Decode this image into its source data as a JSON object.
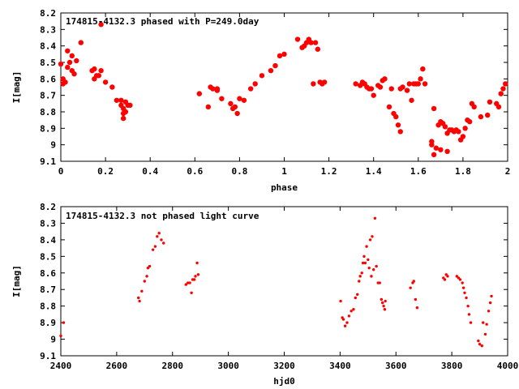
{
  "chart_data": [
    {
      "type": "scatter",
      "title": "174815-4132.3 phased with P=249.0day",
      "xlabel": "phase",
      "ylabel": "I[mag]",
      "xlim": [
        0,
        2
      ],
      "ylim": [
        9.1,
        8.2
      ],
      "y_inverted": true,
      "grid": false,
      "marker_color": "#ff0000",
      "marker": "filled-circle-large",
      "xticks": [
        0,
        0.2,
        0.4,
        0.6,
        0.8,
        1,
        1.2,
        1.4,
        1.6,
        1.8,
        2
      ],
      "yticks": [
        8.2,
        8.3,
        8.4,
        8.5,
        8.6,
        8.7,
        8.8,
        8.9,
        9,
        9.1
      ],
      "points": [
        [
          0.0,
          8.51
        ],
        [
          0.01,
          8.6
        ],
        [
          0.01,
          8.63
        ],
        [
          0.02,
          8.62
        ],
        [
          0.03,
          8.53
        ],
        [
          0.03,
          8.43
        ],
        [
          0.04,
          8.5
        ],
        [
          0.05,
          8.55
        ],
        [
          0.05,
          8.46
        ],
        [
          0.06,
          8.57
        ],
        [
          0.07,
          8.49
        ],
        [
          0.09,
          8.38
        ],
        [
          0.14,
          8.55
        ],
        [
          0.15,
          8.6
        ],
        [
          0.15,
          8.54
        ],
        [
          0.16,
          8.58
        ],
        [
          0.17,
          8.58
        ],
        [
          0.18,
          8.55
        ],
        [
          0.18,
          8.27
        ],
        [
          0.2,
          8.62
        ],
        [
          0.23,
          8.65
        ],
        [
          0.25,
          8.73
        ],
        [
          0.27,
          8.73
        ],
        [
          0.27,
          8.76
        ],
        [
          0.28,
          8.78
        ],
        [
          0.28,
          8.81
        ],
        [
          0.28,
          8.84
        ],
        [
          0.29,
          8.8
        ],
        [
          0.29,
          8.74
        ],
        [
          0.3,
          8.76
        ],
        [
          0.31,
          8.76
        ],
        [
          0.62,
          8.69
        ],
        [
          0.66,
          8.77
        ],
        [
          0.67,
          8.65
        ],
        [
          0.68,
          8.66
        ],
        [
          0.7,
          8.66
        ],
        [
          0.7,
          8.67
        ],
        [
          0.72,
          8.72
        ],
        [
          0.76,
          8.75
        ],
        [
          0.77,
          8.78
        ],
        [
          0.78,
          8.77
        ],
        [
          0.79,
          8.81
        ],
        [
          0.8,
          8.72
        ],
        [
          0.82,
          8.73
        ],
        [
          0.85,
          8.66
        ],
        [
          0.87,
          8.63
        ],
        [
          0.9,
          8.58
        ],
        [
          0.94,
          8.55
        ],
        [
          0.96,
          8.52
        ],
        [
          0.98,
          8.46
        ],
        [
          1.0,
          8.45
        ],
        [
          1.06,
          8.36
        ],
        [
          1.08,
          8.41
        ],
        [
          1.09,
          8.4
        ],
        [
          1.1,
          8.38
        ],
        [
          1.11,
          8.36
        ],
        [
          1.12,
          8.38
        ],
        [
          1.13,
          8.63
        ],
        [
          1.14,
          8.38
        ],
        [
          1.15,
          8.42
        ],
        [
          1.16,
          8.62
        ],
        [
          1.17,
          8.63
        ],
        [
          1.18,
          8.62
        ],
        [
          1.32,
          8.63
        ],
        [
          1.34,
          8.64
        ],
        [
          1.35,
          8.62
        ],
        [
          1.36,
          8.63
        ],
        [
          1.37,
          8.65
        ],
        [
          1.38,
          8.66
        ],
        [
          1.39,
          8.66
        ],
        [
          1.4,
          8.7
        ],
        [
          1.42,
          8.64
        ],
        [
          1.43,
          8.65
        ],
        [
          1.44,
          8.61
        ],
        [
          1.45,
          8.6
        ],
        [
          1.47,
          8.77
        ],
        [
          1.48,
          8.66
        ],
        [
          1.49,
          8.81
        ],
        [
          1.5,
          8.83
        ],
        [
          1.51,
          8.88
        ],
        [
          1.52,
          8.92
        ],
        [
          1.52,
          8.66
        ],
        [
          1.53,
          8.65
        ],
        [
          1.55,
          8.67
        ],
        [
          1.56,
          8.63
        ],
        [
          1.57,
          8.73
        ],
        [
          1.58,
          8.63
        ],
        [
          1.59,
          8.63
        ],
        [
          1.6,
          8.63
        ],
        [
          1.61,
          8.6
        ],
        [
          1.62,
          8.54
        ],
        [
          1.63,
          8.63
        ],
        [
          1.66,
          8.98
        ],
        [
          1.66,
          9.0
        ],
        [
          1.67,
          8.78
        ],
        [
          1.67,
          9.06
        ],
        [
          1.68,
          9.02
        ],
        [
          1.69,
          8.88
        ],
        [
          1.7,
          8.86
        ],
        [
          1.7,
          9.03
        ],
        [
          1.71,
          8.87
        ],
        [
          1.72,
          8.89
        ],
        [
          1.73,
          8.93
        ],
        [
          1.73,
          9.04
        ],
        [
          1.74,
          8.91
        ],
        [
          1.75,
          8.91
        ],
        [
          1.76,
          8.92
        ],
        [
          1.77,
          8.91
        ],
        [
          1.78,
          8.92
        ],
        [
          1.79,
          8.97
        ],
        [
          1.8,
          8.95
        ],
        [
          1.81,
          8.9
        ],
        [
          1.82,
          8.85
        ],
        [
          1.83,
          8.86
        ],
        [
          1.84,
          8.75
        ],
        [
          1.85,
          8.77
        ],
        [
          1.88,
          8.83
        ],
        [
          1.91,
          8.82
        ],
        [
          1.92,
          8.74
        ],
        [
          1.95,
          8.75
        ],
        [
          1.96,
          8.77
        ],
        [
          1.97,
          8.69
        ],
        [
          1.98,
          8.66
        ],
        [
          1.99,
          8.63
        ]
      ]
    },
    {
      "type": "scatter",
      "title": "174815-4132.3 not phased light curve",
      "xlabel": "hjd0",
      "ylabel": "I[mag]",
      "xlim": [
        2400,
        4000
      ],
      "ylim": [
        9.1,
        8.2
      ],
      "y_inverted": true,
      "grid": false,
      "marker_color": "#ff0000",
      "marker": "filled-circle-small",
      "xticks": [
        2400,
        2600,
        2800,
        3000,
        3200,
        3400,
        3600,
        3800,
        4000
      ],
      "yticks": [
        8.2,
        8.3,
        8.4,
        8.5,
        8.6,
        8.7,
        8.8,
        8.9,
        9,
        9.1
      ],
      "points": [
        [
          2400,
          8.98
        ],
        [
          2410,
          8.9
        ],
        [
          2678,
          8.75
        ],
        [
          2682,
          8.77
        ],
        [
          2690,
          8.71
        ],
        [
          2700,
          8.65
        ],
        [
          2708,
          8.62
        ],
        [
          2712,
          8.57
        ],
        [
          2718,
          8.56
        ],
        [
          2730,
          8.46
        ],
        [
          2738,
          8.44
        ],
        [
          2745,
          8.38
        ],
        [
          2752,
          8.36
        ],
        [
          2760,
          8.4
        ],
        [
          2768,
          8.42
        ],
        [
          2848,
          8.67
        ],
        [
          2855,
          8.66
        ],
        [
          2862,
          8.66
        ],
        [
          2868,
          8.72
        ],
        [
          2872,
          8.64
        ],
        [
          2878,
          8.64
        ],
        [
          2882,
          8.62
        ],
        [
          2888,
          8.54
        ],
        [
          2892,
          8.61
        ],
        [
          3402,
          8.77
        ],
        [
          3408,
          8.87
        ],
        [
          3412,
          8.88
        ],
        [
          3418,
          8.92
        ],
        [
          3425,
          8.9
        ],
        [
          3432,
          8.86
        ],
        [
          3440,
          8.83
        ],
        [
          3448,
          8.82
        ],
        [
          3455,
          8.75
        ],
        [
          3462,
          8.73
        ],
        [
          3468,
          8.65
        ],
        [
          3472,
          8.62
        ],
        [
          3478,
          8.6
        ],
        [
          3482,
          8.54
        ],
        [
          3486,
          8.5
        ],
        [
          3490,
          8.54
        ],
        [
          3495,
          8.44
        ],
        [
          3500,
          8.52
        ],
        [
          3504,
          8.57
        ],
        [
          3508,
          8.4
        ],
        [
          3512,
          8.62
        ],
        [
          3515,
          8.38
        ],
        [
          3520,
          8.58
        ],
        [
          3525,
          8.27
        ],
        [
          3530,
          8.56
        ],
        [
          3536,
          8.66
        ],
        [
          3542,
          8.66
        ],
        [
          3548,
          8.76
        ],
        [
          3552,
          8.78
        ],
        [
          3556,
          8.8
        ],
        [
          3560,
          8.82
        ],
        [
          3562,
          8.77
        ],
        [
          3652,
          8.69
        ],
        [
          3660,
          8.66
        ],
        [
          3664,
          8.65
        ],
        [
          3670,
          8.76
        ],
        [
          3676,
          8.81
        ],
        [
          3770,
          8.63
        ],
        [
          3775,
          8.64
        ],
        [
          3780,
          8.61
        ],
        [
          3785,
          8.62
        ],
        [
          3818,
          8.62
        ],
        [
          3824,
          8.63
        ],
        [
          3830,
          8.64
        ],
        [
          3838,
          8.66
        ],
        [
          3842,
          8.69
        ],
        [
          3846,
          8.72
        ],
        [
          3852,
          8.75
        ],
        [
          3858,
          8.8
        ],
        [
          3862,
          8.85
        ],
        [
          3868,
          8.9
        ],
        [
          3895,
          9.01
        ],
        [
          3900,
          9.03
        ],
        [
          3908,
          9.04
        ],
        [
          3912,
          8.9
        ],
        [
          3920,
          8.97
        ],
        [
          3925,
          8.91
        ],
        [
          3932,
          8.83
        ],
        [
          3938,
          8.78
        ],
        [
          3942,
          8.74
        ]
      ]
    }
  ]
}
